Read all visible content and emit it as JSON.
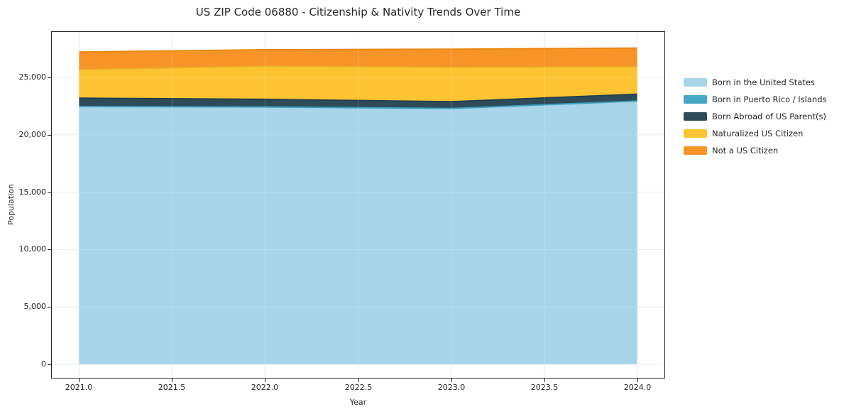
{
  "title": "US ZIP Code 06880 - Citizenship & Nativity Trends Over Time",
  "chart_data": {
    "type": "area",
    "stacked": true,
    "title": "US ZIP Code 06880 - Citizenship & Nativity Trends Over Time",
    "xlabel": "Year",
    "ylabel": "Population",
    "x": [
      2021,
      2022,
      2023,
      2024
    ],
    "series": [
      {
        "name": "Born in the United States",
        "color": "#a8d5e9",
        "edge": "#7fbedb",
        "values": [
          22440,
          22400,
          22270,
          22910
        ]
      },
      {
        "name": "Born in Puerto Rico / Islands",
        "color": "#45a8c4",
        "edge": "#3d9cb8",
        "values": [
          30,
          30,
          30,
          35
        ]
      },
      {
        "name": "Born Abroad of US Parent(s)",
        "color": "#2d4b59",
        "edge": "#223d49",
        "values": [
          720,
          660,
          580,
          595
        ]
      },
      {
        "name": "Naturalized US Citizen",
        "color": "#fcc332",
        "edge": "#eab120",
        "values": [
          2480,
          2890,
          2990,
          2380
        ]
      },
      {
        "name": "Not a US Citizen",
        "color": "#f79428",
        "edge": "#ea860e",
        "values": [
          1550,
          1440,
          1590,
          1640
        ]
      }
    ],
    "xlim": [
      2020.85,
      2024.15
    ],
    "ylim": [
      -1240,
      29020
    ],
    "xticks": {
      "values": [
        2021.0,
        2021.5,
        2022.0,
        2022.5,
        2023.0,
        2023.5,
        2024.0
      ],
      "labels": [
        "2021.0",
        "2021.5",
        "2022.0",
        "2022.5",
        "2023.0",
        "2023.5",
        "2024.0"
      ]
    },
    "yticks": {
      "values": [
        0,
        5000,
        10000,
        15000,
        20000,
        25000
      ],
      "labels": [
        "0",
        "5,000",
        "10,000",
        "15,000",
        "20,000",
        "25,000"
      ]
    },
    "grid": true,
    "grid_color": "#e6e6e6",
    "spine_color": "#262626",
    "legend_position": "right-outside"
  }
}
